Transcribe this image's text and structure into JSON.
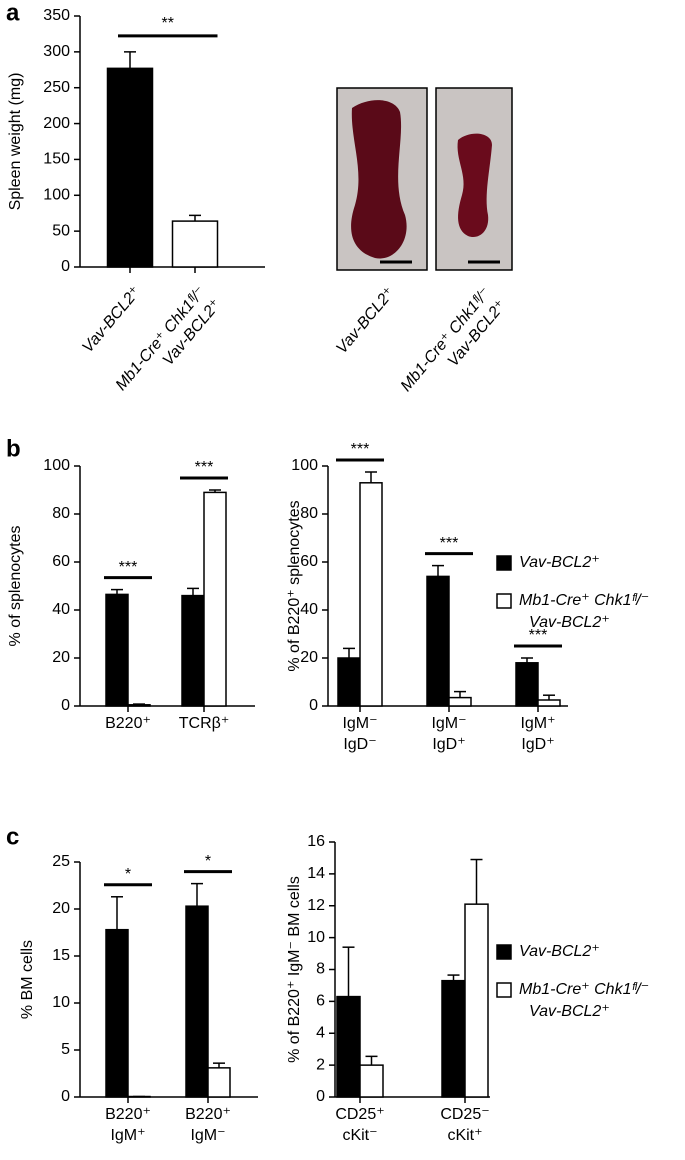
{
  "panels": [
    "a",
    "b",
    "c"
  ],
  "photo_labels": [
    [
      "Vav-BCL2⁺"
    ],
    [
      "Mb1-Cre⁺ Chk1ᶠˡ/⁻",
      "Vav-BCL2⁺"
    ]
  ],
  "chart_data": [
    {
      "type": "bar",
      "ylabel": "Spleen weight (mg)",
      "categories": [
        [
          "Vav-BCL2⁺"
        ],
        [
          "Mb1-Cre⁺ Chk1ᶠˡ/⁻",
          "Vav-BCL2⁺"
        ]
      ],
      "values": [
        277,
        64
      ],
      "errors": [
        23,
        8
      ],
      "colors": [
        "#000000",
        "#ffffff"
      ],
      "ylim": [
        0,
        350
      ],
      "yticks": [
        0,
        50,
        100,
        150,
        200,
        250,
        300,
        350
      ],
      "significance": "**"
    },
    {
      "type": "grouped_bar",
      "ylabel": "% of splenocytes",
      "categories": [
        [
          "B220⁺"
        ],
        [
          "TCRβ⁺"
        ]
      ],
      "series": [
        {
          "name": [
            "Vav-BCL2⁺"
          ],
          "color": "#000000",
          "values": [
            46.5,
            46
          ],
          "errors": [
            2,
            3
          ]
        },
        {
          "name": [
            "Mb1-Cre⁺ Chk1ᶠˡ/⁻",
            "Vav-BCL2⁺"
          ],
          "color": "#ffffff",
          "values": [
            0.5,
            89
          ],
          "errors": [
            0.3,
            1
          ]
        }
      ],
      "ylim": [
        0,
        100
      ],
      "yticks": [
        0,
        20,
        40,
        60,
        80,
        100
      ],
      "significance": [
        "***",
        "***"
      ],
      "legend": false
    },
    {
      "type": "grouped_bar",
      "ylabel": "% of B220⁺ splenocytes",
      "categories": [
        [
          "IgM⁻",
          "IgD⁻"
        ],
        [
          "IgM⁻",
          "IgD⁺"
        ],
        [
          "IgM⁺",
          "IgD⁺"
        ]
      ],
      "series": [
        {
          "name": [
            "Vav-BCL2⁺"
          ],
          "color": "#000000",
          "values": [
            20,
            54,
            18
          ],
          "errors": [
            4,
            4.5,
            2
          ]
        },
        {
          "name": [
            "Mb1-Cre⁺ Chk1ᶠˡ/⁻",
            "Vav-BCL2⁺"
          ],
          "color": "#ffffff",
          "values": [
            93,
            3.5,
            2.5
          ],
          "errors": [
            4.5,
            2.5,
            2
          ]
        }
      ],
      "ylim": [
        0,
        100
      ],
      "yticks": [
        0,
        20,
        40,
        60,
        80,
        100
      ],
      "significance": [
        "***",
        "***",
        "***"
      ],
      "legend": "right"
    },
    {
      "type": "grouped_bar",
      "ylabel": "% BM cells",
      "categories": [
        [
          "B220⁺",
          "IgM⁺"
        ],
        [
          "B220⁺",
          "IgM⁻"
        ]
      ],
      "series": [
        {
          "name": [
            "Vav-BCL2⁺"
          ],
          "color": "#000000",
          "values": [
            17.8,
            20.3
          ],
          "errors": [
            3.5,
            2.4
          ]
        },
        {
          "name": [
            "Mb1-Cre⁺ Chk1ᶠˡ/⁻",
            "Vav-BCL2⁺"
          ],
          "color": "#ffffff",
          "values": [
            0.05,
            3.1
          ],
          "errors": [
            0,
            0.5
          ]
        }
      ],
      "ylim": [
        0,
        25
      ],
      "yticks": [
        0,
        5,
        10,
        15,
        20,
        25
      ],
      "significance": [
        "*",
        "*"
      ],
      "legend": false
    },
    {
      "type": "grouped_bar",
      "ylabel": "% of B220⁺ IgM⁻ BM cells",
      "categories": [
        [
          "CD25⁺",
          "cKit⁻"
        ],
        [
          "CD25⁻",
          "cKit⁺"
        ]
      ],
      "series": [
        {
          "name": [
            "Vav-BCL2⁺"
          ],
          "color": "#000000",
          "values": [
            6.3,
            7.3
          ],
          "errors": [
            3.1,
            0.35
          ]
        },
        {
          "name": [
            "Mb1-Cre⁺ Chk1ᶠˡ/⁻",
            "Vav-BCL2⁺"
          ],
          "color": "#ffffff",
          "values": [
            2.0,
            12.1
          ],
          "errors": [
            0.55,
            2.8
          ]
        }
      ],
      "ylim": [
        0,
        16
      ],
      "yticks": [
        0,
        2,
        4,
        6,
        8,
        10,
        12,
        14,
        16
      ],
      "legend": "right"
    }
  ]
}
